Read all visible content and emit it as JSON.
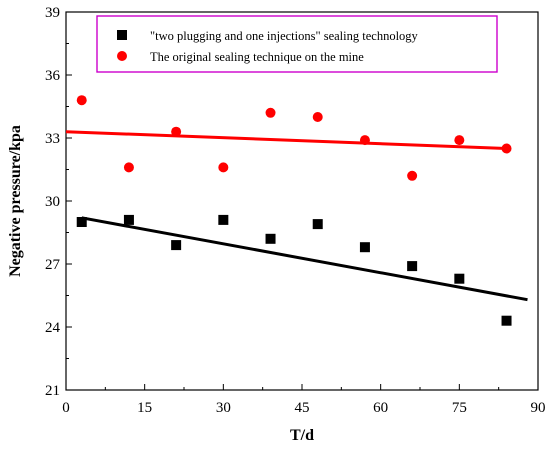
{
  "chart_data": {
    "type": "scatter",
    "title": "",
    "xlabel": "T/d",
    "ylabel": "Negative pressure/kpa",
    "xlim": [
      0,
      90
    ],
    "ylim": [
      21,
      39
    ],
    "xticks": [
      0,
      15,
      30,
      45,
      60,
      75,
      90
    ],
    "yticks": [
      21,
      24,
      27,
      30,
      33,
      36,
      39
    ],
    "legend_position": "top",
    "grid": false,
    "series": [
      {
        "name": "\"two plugging and one injections\" sealing technology",
        "marker": "square",
        "color": "#000000",
        "x": [
          3,
          12,
          21,
          30,
          39,
          48,
          57,
          66,
          75,
          84
        ],
        "y": [
          29.0,
          29.1,
          27.9,
          29.1,
          28.2,
          28.9,
          27.8,
          26.9,
          26.3,
          24.3
        ],
        "trendline": {
          "x": [
            3,
            88
          ],
          "y": [
            29.2,
            25.3
          ]
        }
      },
      {
        "name": "The original sealing technique on the mine",
        "marker": "circle",
        "color": "#ff0000",
        "x": [
          3,
          12,
          21,
          30,
          39,
          48,
          57,
          66,
          75,
          84
        ],
        "y": [
          34.8,
          31.6,
          33.3,
          31.6,
          34.2,
          34.0,
          32.9,
          31.2,
          32.9,
          32.5
        ],
        "trendline": {
          "x": [
            0,
            84
          ],
          "y": [
            33.3,
            32.5
          ]
        }
      }
    ]
  }
}
